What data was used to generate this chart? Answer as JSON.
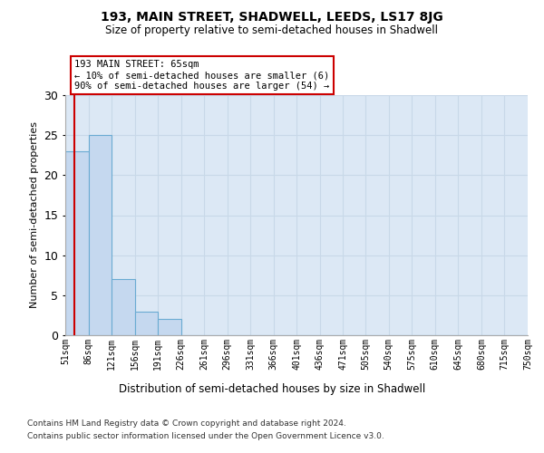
{
  "title": "193, MAIN STREET, SHADWELL, LEEDS, LS17 8JG",
  "subtitle": "Size of property relative to semi-detached houses in Shadwell",
  "xlabel": "Distribution of semi-detached houses by size in Shadwell",
  "ylabel": "Number of semi-detached properties",
  "footer_line1": "Contains HM Land Registry data © Crown copyright and database right 2024.",
  "footer_line2": "Contains public sector information licensed under the Open Government Licence v3.0.",
  "bin_labels": [
    "51sqm",
    "86sqm",
    "121sqm",
    "156sqm",
    "191sqm",
    "226sqm",
    "261sqm",
    "296sqm",
    "331sqm",
    "366sqm",
    "401sqm",
    "436sqm",
    "471sqm",
    "505sqm",
    "540sqm",
    "575sqm",
    "610sqm",
    "645sqm",
    "680sqm",
    "715sqm",
    "750sqm"
  ],
  "bin_edges": [
    51,
    86,
    121,
    156,
    191,
    226,
    261,
    296,
    331,
    366,
    401,
    436,
    471,
    505,
    540,
    575,
    610,
    645,
    680,
    715,
    750
  ],
  "bar_values": [
    23,
    25,
    7,
    3,
    2,
    0,
    0,
    0,
    0,
    0,
    0,
    0,
    0,
    0,
    0,
    0,
    0,
    0,
    0,
    0
  ],
  "bar_color": "#c5d8ef",
  "bar_edge_color": "#6aabd2",
  "property_size": 65,
  "annotation_title": "193 MAIN STREET: 65sqm",
  "annotation_line1": "← 10% of semi-detached houses are smaller (6)",
  "annotation_line2": "90% of semi-detached houses are larger (54) →",
  "red_line_color": "#cc0000",
  "annotation_box_edge": "#cc0000",
  "ylim": [
    0,
    30
  ],
  "yticks": [
    0,
    5,
    10,
    15,
    20,
    25,
    30
  ],
  "background_color": "#ffffff",
  "grid_color": "#c8d8e8",
  "axes_bg_color": "#dce8f5"
}
